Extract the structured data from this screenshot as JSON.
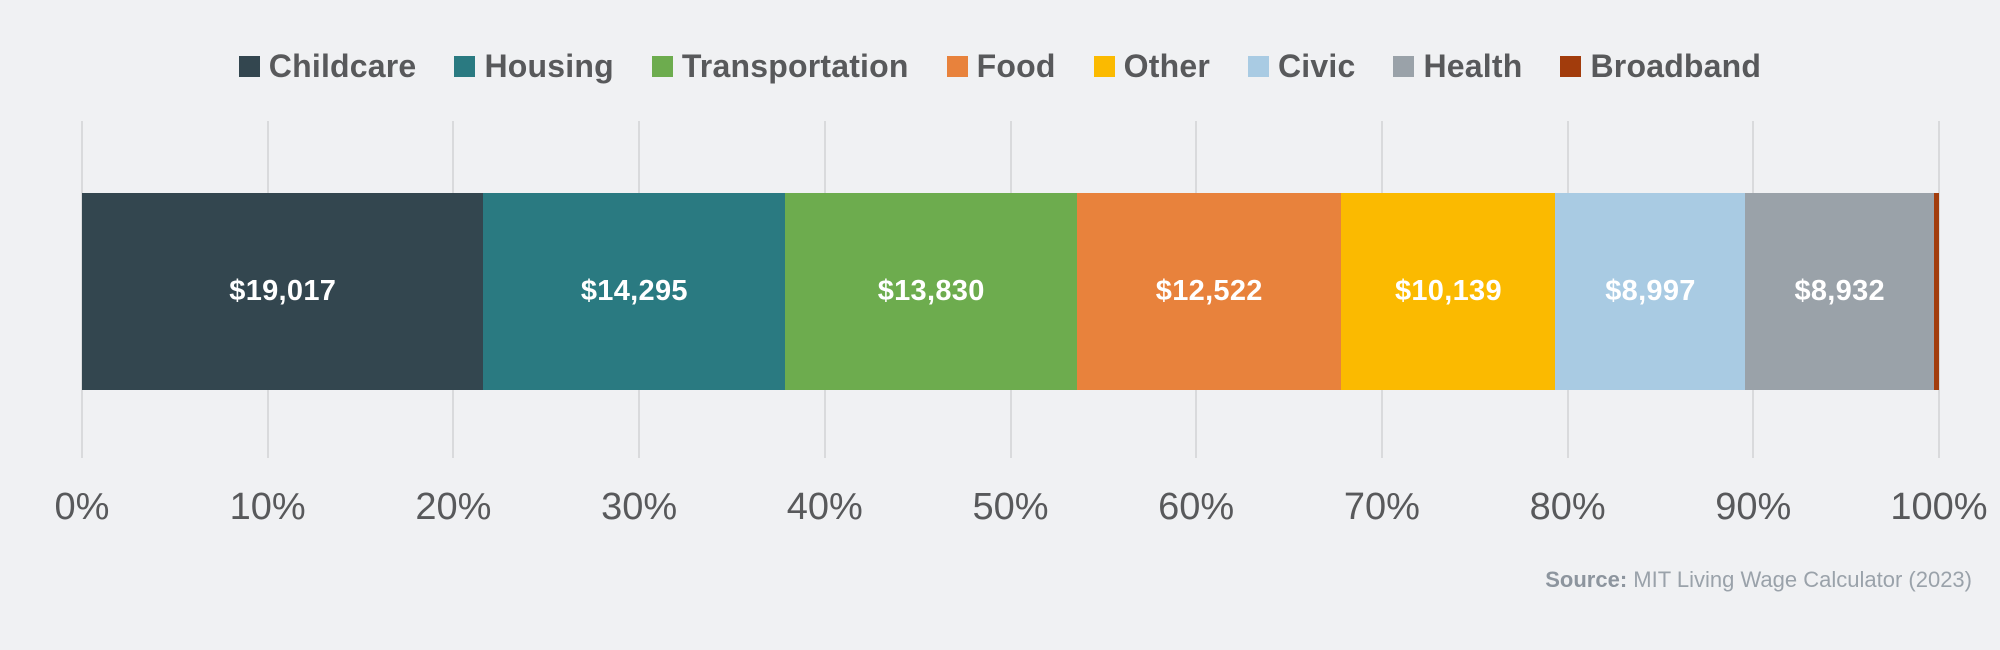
{
  "colors": {
    "background": "#f0f1f3",
    "gridline": "#d9dadc",
    "axis_text": "#58595b",
    "legend_text": "#58595b",
    "value_text": "#ffffff",
    "source_text": "#9aa2aa"
  },
  "chart_data": {
    "type": "bar",
    "subtype": "stacked-horizontal-100percent",
    "title": "",
    "xlabel": "",
    "ylabel": "",
    "xlim": [
      0,
      100
    ],
    "grid": true,
    "legend_position": "top",
    "x_ticks": [
      "0%",
      "10%",
      "20%",
      "30%",
      "40%",
      "50%",
      "60%",
      "70%",
      "80%",
      "90%",
      "100%"
    ],
    "series": [
      {
        "name": "Childcare",
        "value": 19017,
        "label": "$19,017",
        "color": "#33464f",
        "pct": 21.62
      },
      {
        "name": "Housing",
        "value": 14295,
        "label": "$14,295",
        "color": "#2a7a81",
        "pct": 16.25
      },
      {
        "name": "Transportation",
        "value": 13830,
        "label": "$13,830",
        "color": "#6dac4e",
        "pct": 15.72
      },
      {
        "name": "Food",
        "value": 12522,
        "label": "$12,522",
        "color": "#e8823c",
        "pct": 14.23
      },
      {
        "name": "Other",
        "value": 10139,
        "label": "$10,139",
        "color": "#fbba00",
        "pct": 11.53
      },
      {
        "name": "Civic",
        "value": 8997,
        "label": "$8,997",
        "color": "#a9cbe3",
        "pct": 10.23
      },
      {
        "name": "Health",
        "value": 8932,
        "label": "$8,932",
        "color": "#9aa2a9",
        "pct": 10.15
      },
      {
        "name": "Broadband",
        "value": null,
        "label": "",
        "color": "#a23c0c",
        "pct": 0.27
      }
    ]
  },
  "source": {
    "prefix": "Source:",
    "text": " MIT Living Wage Calculator (2023)"
  }
}
